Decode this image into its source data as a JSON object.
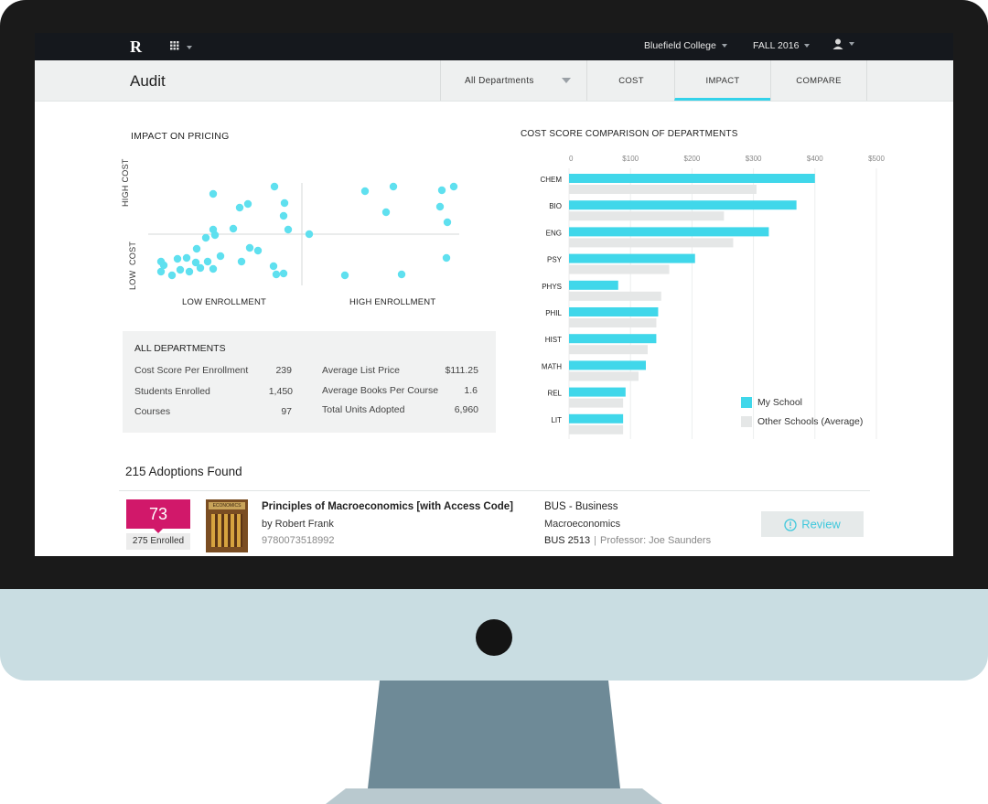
{
  "header": {
    "logo": "R",
    "college": "Bluefield College",
    "term": "FALL 2016"
  },
  "subheader": {
    "title": "Audit",
    "department_select": "All Departments",
    "tabs": [
      {
        "label": "COST",
        "active": false
      },
      {
        "label": "IMPACT",
        "active": true
      },
      {
        "label": "COMPARE",
        "active": false
      }
    ]
  },
  "impact": {
    "title": "IMPACT ON PRICING",
    "y_high": "HIGH COST",
    "y_low": "LOW  COST",
    "x_low": "LOW ENROLLMENT",
    "x_high": "HIGH ENROLLMENT"
  },
  "scatter_color": "#5fe0ef",
  "stats": {
    "title": "ALL DEPARTMENTS",
    "rows_left": [
      {
        "label": "Cost Score Per Enrollment",
        "value": "239"
      },
      {
        "label": "Students Enrolled",
        "value": "1,450"
      },
      {
        "label": "Courses",
        "value": "97"
      }
    ],
    "rows_right": [
      {
        "label": "Average List Price",
        "value": "$111.25"
      },
      {
        "label": "Average Books Per Course",
        "value": "1.6"
      },
      {
        "label": "Total Units Adopted",
        "value": "6,960"
      }
    ]
  },
  "chart_data": {
    "type": "bar",
    "orientation": "horizontal",
    "title": "COST SCORE COMPARISON OF DEPARTMENTS",
    "categories": [
      "CHEM",
      "BIO",
      "ENG",
      "PSY",
      "PHYS",
      "PHIL",
      "HIST",
      "MATH",
      "REL",
      "LIT"
    ],
    "series": [
      {
        "name": "My School",
        "color": "#40d7ea",
        "values": [
          400,
          370,
          325,
          205,
          80,
          145,
          142,
          125,
          92,
          88
        ]
      },
      {
        "name": "Other Schools (Average)",
        "color": "#e5e7e7",
        "values": [
          305,
          252,
          267,
          163,
          150,
          142,
          128,
          113,
          88,
          88
        ]
      }
    ],
    "xlim": [
      0,
      500
    ],
    "x_ticks": [
      "0",
      "$100",
      "$200",
      "$300",
      "$400",
      "$500"
    ],
    "legend": "bottom-right",
    "grid": true
  },
  "adoptions": {
    "count_label": "215 Adoptions Found",
    "items": [
      {
        "score": "73",
        "enrolled": "275 Enrolled",
        "badge_color": "#d1186a",
        "cover_text": "ECONOMICS",
        "title": "Principles of Macroeconomics [with Access Code]",
        "author": "by Robert Frank",
        "isbn": "9780073518992",
        "dept": "BUS - Business",
        "course_name": "Macroeconomics",
        "course_code": "BUS 2513",
        "separator": "|",
        "professor": "Professor: Joe Saunders",
        "action": "Review"
      }
    ]
  }
}
